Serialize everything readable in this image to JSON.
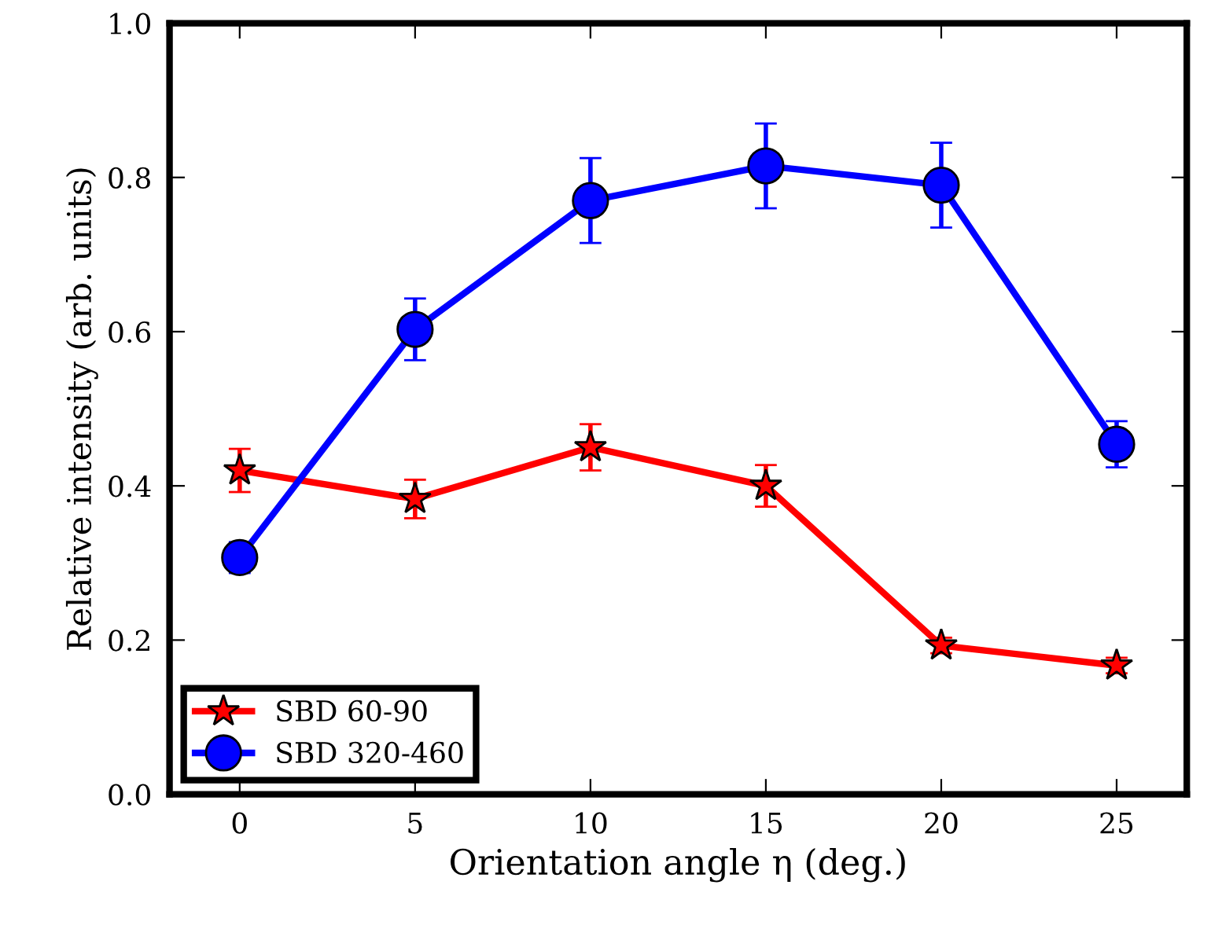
{
  "chart_data": {
    "type": "line",
    "xlabel": "Orientation angle η (deg.)",
    "ylabel": "Relative intensity (arb. units)",
    "x": [
      0,
      5,
      10,
      15,
      20,
      25
    ],
    "series": [
      {
        "name": "SBD 60-90",
        "color": "#ff0000",
        "marker": "star",
        "values": [
          0.42,
          0.383,
          0.45,
          0.4,
          0.193,
          0.167
        ],
        "errors": [
          0.028,
          0.025,
          0.03,
          0.027,
          0.01,
          0.01
        ]
      },
      {
        "name": "SBD 320-460",
        "color": "#0000ff",
        "marker": "circle",
        "values": [
          0.307,
          0.603,
          0.77,
          0.815,
          0.79,
          0.454
        ],
        "errors": [
          0.02,
          0.04,
          0.055,
          0.055,
          0.055,
          0.03
        ]
      }
    ],
    "xlim": [
      -2,
      27
    ],
    "xticks": [
      0,
      5,
      10,
      15,
      20,
      25
    ],
    "ylim": [
      0,
      1
    ],
    "yticks": [
      {
        "value": 0,
        "label": "0.0"
      },
      {
        "value": 0.2,
        "label": "0.2"
      },
      {
        "value": 0.4,
        "label": "0.4"
      },
      {
        "value": 0.6,
        "label": "0.6"
      },
      {
        "value": 0.8,
        "label": "0.8"
      },
      {
        "value": 1.0,
        "label": "1.0"
      }
    ],
    "grid": false,
    "legend": "bottom left",
    "line_style": "solid"
  }
}
